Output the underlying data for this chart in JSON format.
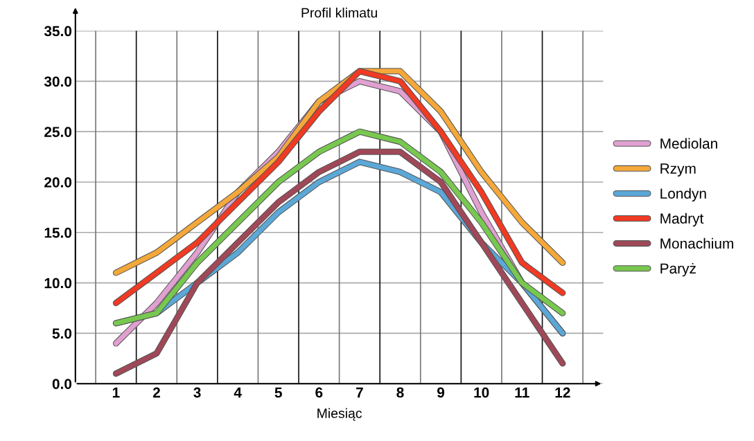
{
  "chart_data": {
    "type": "line",
    "title": "Profil klimatu",
    "xlabel": "Miesiąc",
    "categories": [
      "1",
      "2",
      "3",
      "4",
      "5",
      "6",
      "7",
      "8",
      "9",
      "10",
      "11",
      "12"
    ],
    "series": [
      {
        "name": "Mediolan",
        "color": "#e0a0d0",
        "values": [
          4,
          8,
          13,
          19,
          23,
          28,
          30,
          29,
          25,
          17,
          10,
          5
        ]
      },
      {
        "name": "Rzym",
        "color": "#f5a83a",
        "values": [
          11,
          13,
          16,
          19,
          22.5,
          28,
          31,
          31,
          27,
          21,
          16,
          12
        ]
      },
      {
        "name": "Londyn",
        "color": "#5ba8d8",
        "values": [
          6,
          7,
          10,
          13,
          17,
          20,
          22,
          21,
          19,
          14,
          10,
          5
        ]
      },
      {
        "name": "Madryt",
        "color": "#f03a24",
        "values": [
          8,
          11,
          14,
          18,
          22,
          27,
          31,
          30,
          25,
          19,
          12,
          9
        ]
      },
      {
        "name": "Monachium",
        "color": "#a04858",
        "values": [
          1,
          3,
          10,
          14,
          18,
          21,
          23,
          23,
          20,
          14,
          8,
          2
        ]
      },
      {
        "name": "Paryż",
        "color": "#78c850",
        "values": [
          6,
          7,
          12,
          16,
          20,
          23,
          25,
          24,
          21,
          16,
          10,
          7
        ]
      }
    ],
    "ylim": [
      0,
      35
    ],
    "yticks": [
      {
        "value": 0,
        "label": "0.0"
      },
      {
        "value": 5,
        "label": "5.0"
      },
      {
        "value": 10,
        "label": "10.0"
      },
      {
        "value": 15,
        "label": "15.0"
      },
      {
        "value": 20,
        "label": "20.0"
      },
      {
        "value": 25,
        "label": "25.0"
      },
      {
        "value": 30,
        "label": "30.0"
      },
      {
        "value": 35,
        "label": "35.0"
      }
    ],
    "grid": true,
    "legend": "right",
    "marker": "none",
    "line_style": "solid"
  }
}
